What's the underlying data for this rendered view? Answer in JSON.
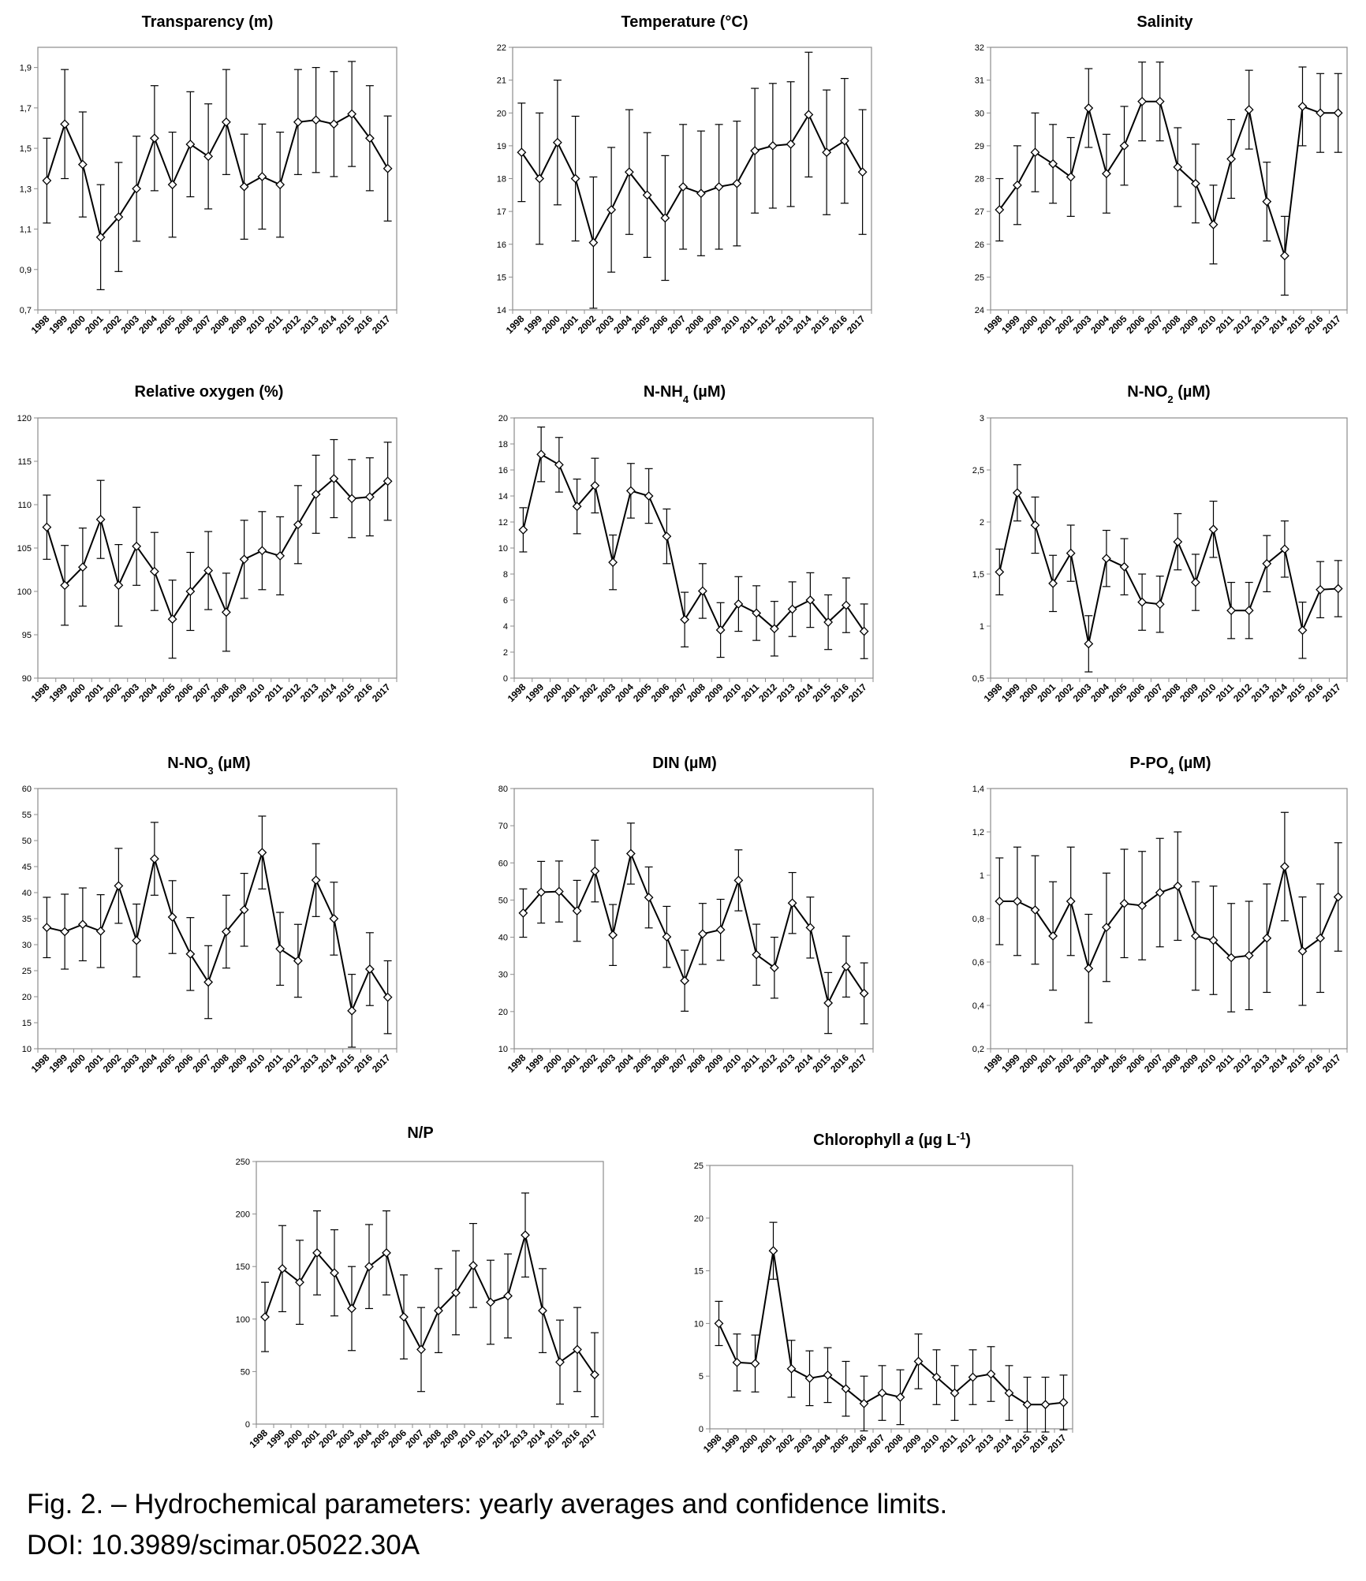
{
  "caption": {
    "line1": "Fig. 2. – Hydrochemical parameters: yearly averages and confidence limits.",
    "line2": "DOI: 10.3989/scimar.05022.30A"
  },
  "chart_data": [
    {
      "type": "line",
      "title": "Transparency (m)",
      "categories": [
        "1998",
        "1999",
        "2000",
        "2001",
        "2002",
        "2003",
        "2004",
        "2005",
        "2006",
        "2007",
        "2008",
        "2009",
        "2010",
        "2011",
        "2012",
        "2013",
        "2014",
        "2015",
        "2016",
        "2017"
      ],
      "values": [
        1.34,
        1.62,
        1.42,
        1.06,
        1.16,
        1.3,
        1.55,
        1.32,
        1.52,
        1.46,
        1.63,
        1.31,
        1.36,
        1.32,
        1.63,
        1.64,
        1.62,
        1.67,
        1.55,
        1.4
      ],
      "error": [
        0.21,
        0.27,
        0.26,
        0.26,
        0.27,
        0.26,
        0.26,
        0.26,
        0.26,
        0.26,
        0.26,
        0.26,
        0.26,
        0.26,
        0.26,
        0.26,
        0.26,
        0.26,
        0.26,
        0.26
      ],
      "ylim": [
        0.7,
        2.0
      ],
      "yticks": [
        0.7,
        0.9,
        1.1,
        1.3,
        1.5,
        1.7,
        1.9
      ],
      "ytick_labels": [
        "0,7",
        "0,9",
        "1,1",
        "1,3",
        "1,5",
        "1,7",
        "1,9"
      ]
    },
    {
      "type": "line",
      "title": "Temperature (°C)",
      "categories": [
        "1998",
        "1999",
        "2000",
        "2001",
        "2002",
        "2003",
        "2004",
        "2005",
        "2006",
        "2007",
        "2008",
        "2009",
        "2010",
        "2011",
        "2012",
        "2013",
        "2014",
        "2015",
        "2016",
        "2017"
      ],
      "values": [
        18.8,
        18.0,
        19.1,
        18.0,
        16.05,
        17.05,
        18.2,
        17.5,
        16.8,
        17.75,
        17.55,
        17.75,
        17.85,
        18.85,
        19.0,
        19.05,
        19.95,
        18.8,
        19.15,
        18.2
      ],
      "error": [
        1.5,
        2.0,
        1.9,
        1.9,
        2.0,
        1.9,
        1.9,
        1.9,
        1.9,
        1.9,
        1.9,
        1.9,
        1.9,
        1.9,
        1.9,
        1.9,
        1.9,
        1.9,
        1.9,
        1.9
      ],
      "ylim": [
        14,
        22
      ],
      "yticks": [
        14,
        15,
        16,
        17,
        18,
        19,
        20,
        21,
        22
      ],
      "ytick_labels": [
        "14",
        "15",
        "16",
        "17",
        "18",
        "19",
        "20",
        "21",
        "22"
      ]
    },
    {
      "type": "line",
      "title": "Salinity",
      "categories": [
        "1998",
        "1999",
        "2000",
        "2001",
        "2002",
        "2003",
        "2004",
        "2005",
        "2006",
        "2007",
        "2008",
        "2009",
        "2010",
        "2011",
        "2012",
        "2013",
        "2014",
        "2015",
        "2016",
        "2017"
      ],
      "values": [
        27.05,
        27.8,
        28.8,
        28.45,
        28.05,
        30.15,
        28.15,
        29.0,
        30.35,
        30.35,
        28.35,
        27.85,
        26.6,
        28.6,
        30.1,
        27.3,
        25.65,
        30.2,
        30.0,
        30.0
      ],
      "error": [
        0.95,
        1.2,
        1.2,
        1.2,
        1.2,
        1.2,
        1.2,
        1.2,
        1.2,
        1.2,
        1.2,
        1.2,
        1.2,
        1.2,
        1.2,
        1.2,
        1.2,
        1.2,
        1.2,
        1.2
      ],
      "ylim": [
        24,
        32
      ],
      "yticks": [
        24,
        25,
        26,
        27,
        28,
        29,
        30,
        31,
        32
      ],
      "ytick_labels": [
        "24",
        "25",
        "26",
        "27",
        "28",
        "29",
        "30",
        "31",
        "32"
      ]
    },
    {
      "type": "line",
      "title": "Relative oxygen (%)",
      "categories": [
        "1998",
        "1999",
        "2000",
        "2001",
        "2002",
        "2003",
        "2004",
        "2005",
        "2006",
        "2007",
        "2008",
        "2009",
        "2010",
        "2011",
        "2012",
        "2013",
        "2014",
        "2015",
        "2016",
        "2017"
      ],
      "values": [
        107.4,
        100.7,
        102.8,
        108.3,
        100.7,
        105.2,
        102.3,
        96.8,
        100.0,
        102.4,
        97.6,
        103.7,
        104.7,
        104.1,
        107.7,
        111.2,
        113.0,
        110.7,
        110.9,
        112.7
      ],
      "error": [
        3.7,
        4.6,
        4.5,
        4.5,
        4.7,
        4.5,
        4.5,
        4.5,
        4.5,
        4.5,
        4.5,
        4.5,
        4.5,
        4.5,
        4.5,
        4.5,
        4.5,
        4.5,
        4.5,
        4.5
      ],
      "ylim": [
        90,
        120
      ],
      "yticks": [
        90,
        95,
        100,
        105,
        110,
        115,
        120
      ],
      "ytick_labels": [
        "90",
        "95",
        "100",
        "105",
        "110",
        "115",
        "120"
      ]
    },
    {
      "type": "line",
      "title": "N-NH₄  (µM)",
      "categories": [
        "1998",
        "1999",
        "2000",
        "2001",
        "2002",
        "2003",
        "2004",
        "2005",
        "2006",
        "2007",
        "2008",
        "2009",
        "2010",
        "2011",
        "2012",
        "2013",
        "2014",
        "2015",
        "2016",
        "2017"
      ],
      "values": [
        11.4,
        17.2,
        16.4,
        13.2,
        14.8,
        8.9,
        14.4,
        14.0,
        10.9,
        4.5,
        6.7,
        3.7,
        5.7,
        5.0,
        3.8,
        5.3,
        6.0,
        4.3,
        5.6,
        3.6
      ],
      "error": [
        1.7,
        2.1,
        2.1,
        2.1,
        2.1,
        2.1,
        2.1,
        2.1,
        2.1,
        2.1,
        2.1,
        2.1,
        2.1,
        2.1,
        2.1,
        2.1,
        2.1,
        2.1,
        2.1,
        2.1
      ],
      "ylim": [
        0,
        20
      ],
      "yticks": [
        0,
        2,
        4,
        6,
        8,
        10,
        12,
        14,
        16,
        18,
        20
      ],
      "ytick_labels": [
        "0",
        "2",
        "4",
        "6",
        "8",
        "10",
        "12",
        "14",
        "16",
        "18",
        "20"
      ]
    },
    {
      "type": "line",
      "title": "N-NO₂ (µM)",
      "categories": [
        "1998",
        "1999",
        "2000",
        "2001",
        "2002",
        "2003",
        "2004",
        "2005",
        "2006",
        "2007",
        "2008",
        "2009",
        "2010",
        "2011",
        "2012",
        "2013",
        "2014",
        "2015",
        "2016",
        "2017"
      ],
      "values": [
        1.52,
        2.28,
        1.97,
        1.41,
        1.7,
        0.83,
        1.65,
        1.57,
        1.23,
        1.21,
        1.81,
        1.42,
        1.93,
        1.15,
        1.15,
        1.6,
        1.74,
        0.96,
        1.35,
        1.36
      ],
      "error": [
        0.22,
        0.27,
        0.27,
        0.27,
        0.27,
        0.27,
        0.27,
        0.27,
        0.27,
        0.27,
        0.27,
        0.27,
        0.27,
        0.27,
        0.27,
        0.27,
        0.27,
        0.27,
        0.27,
        0.27
      ],
      "ylim": [
        0.5,
        3
      ],
      "yticks": [
        0.5,
        1,
        1.5,
        2,
        2.5,
        3
      ],
      "ytick_labels": [
        "0,5",
        "1",
        "1,5",
        "2",
        "2,5",
        "3"
      ]
    },
    {
      "type": "line",
      "title": "N-NO₃ (µM)",
      "categories": [
        "1998",
        "1999",
        "2000",
        "2001",
        "2002",
        "2003",
        "2004",
        "2005",
        "2006",
        "2007",
        "2008",
        "2009",
        "2010",
        "2011",
        "2012",
        "2013",
        "2014",
        "2015",
        "2016",
        "2017"
      ],
      "values": [
        33.3,
        32.5,
        33.9,
        32.6,
        41.3,
        30.8,
        46.5,
        35.3,
        28.2,
        22.8,
        32.5,
        36.7,
        47.7,
        29.2,
        26.9,
        42.4,
        35.0,
        17.3,
        25.3,
        19.9
      ],
      "error": [
        5.8,
        7.2,
        7.0,
        7.0,
        7.2,
        7.0,
        7.0,
        7.0,
        7.0,
        7.0,
        7.0,
        7.0,
        7.0,
        7.0,
        7.0,
        7.0,
        7.0,
        7.0,
        7.0,
        7.0
      ],
      "ylim": [
        10,
        60
      ],
      "yticks": [
        10,
        15,
        20,
        25,
        30,
        35,
        40,
        45,
        50,
        55,
        60
      ],
      "ytick_labels": [
        "10",
        "15",
        "20",
        "25",
        "30",
        "35",
        "40",
        "45",
        "50",
        "55",
        "60"
      ]
    },
    {
      "type": "line",
      "title": "DIN (µM)",
      "categories": [
        "1998",
        "1999",
        "2000",
        "2001",
        "2002",
        "2003",
        "2004",
        "2005",
        "2006",
        "2007",
        "2008",
        "2009",
        "2010",
        "2011",
        "2012",
        "2013",
        "2014",
        "2015",
        "2016",
        "2017"
      ],
      "values": [
        46.5,
        52.1,
        52.3,
        47.1,
        57.8,
        40.6,
        62.5,
        50.7,
        40.1,
        28.3,
        40.9,
        42.0,
        55.3,
        35.3,
        31.8,
        49.2,
        42.6,
        22.3,
        32.1,
        24.9
      ],
      "error": [
        6.5,
        8.3,
        8.2,
        8.2,
        8.3,
        8.2,
        8.2,
        8.2,
        8.2,
        8.2,
        8.2,
        8.2,
        8.2,
        8.2,
        8.2,
        8.2,
        8.2,
        8.2,
        8.2,
        8.2
      ],
      "ylim": [
        10,
        80
      ],
      "yticks": [
        10,
        20,
        30,
        40,
        50,
        60,
        70,
        80
      ],
      "ytick_labels": [
        "10",
        "20",
        "30",
        "40",
        "50",
        "60",
        "70",
        "80"
      ]
    },
    {
      "type": "line",
      "title": "P-PO₄ (µM)",
      "categories": [
        "1998",
        "1999",
        "2000",
        "2001",
        "2002",
        "2003",
        "2004",
        "2005",
        "2006",
        "2007",
        "2008",
        "2009",
        "2010",
        "2011",
        "2012",
        "2013",
        "2014",
        "2015",
        "2016",
        "2017"
      ],
      "values": [
        0.88,
        0.88,
        0.84,
        0.72,
        0.88,
        0.57,
        0.76,
        0.87,
        0.86,
        0.92,
        0.95,
        0.72,
        0.7,
        0.62,
        0.63,
        0.71,
        1.04,
        0.65,
        0.71,
        0.9
      ],
      "error": [
        0.2,
        0.25,
        0.25,
        0.25,
        0.25,
        0.25,
        0.25,
        0.25,
        0.25,
        0.25,
        0.25,
        0.25,
        0.25,
        0.25,
        0.25,
        0.25,
        0.25,
        0.25,
        0.25,
        0.25
      ],
      "ylim": [
        0.2,
        1.4
      ],
      "yticks": [
        0.2,
        0.4,
        0.6,
        0.8,
        1,
        1.2,
        1.4
      ],
      "ytick_labels": [
        "0,2",
        "0,4",
        "0,6",
        "0,8",
        "1",
        "1,2",
        "1,4"
      ]
    },
    {
      "type": "line",
      "title": "N/P",
      "categories": [
        "1998",
        "1999",
        "2000",
        "2001",
        "2002",
        "2003",
        "2004",
        "2005",
        "2006",
        "2007",
        "2008",
        "2009",
        "2010",
        "2011",
        "2012",
        "2013",
        "2014",
        "2015",
        "2016",
        "2017"
      ],
      "values": [
        102,
        148,
        135,
        163,
        144,
        110,
        150,
        163,
        102,
        71,
        108,
        125,
        151,
        116,
        122,
        180,
        108,
        59,
        71,
        47
      ],
      "error": [
        33,
        41,
        40,
        40,
        41,
        40,
        40,
        40,
        40,
        40,
        40,
        40,
        40,
        40,
        40,
        40,
        40,
        40,
        40,
        40
      ],
      "ylim": [
        0,
        250
      ],
      "yticks": [
        0,
        50,
        100,
        150,
        200,
        250
      ],
      "ytick_labels": [
        "0",
        "50",
        "100",
        "150",
        "200",
        "250"
      ]
    },
    {
      "type": "line",
      "title": "Chlorophyll a (µg L⁻¹)",
      "categories": [
        "1998",
        "1999",
        "2000",
        "2001",
        "2002",
        "2003",
        "2004",
        "2005",
        "2006",
        "2007",
        "2008",
        "2009",
        "2010",
        "2011",
        "2012",
        "2013",
        "2014",
        "2015",
        "2016",
        "2017"
      ],
      "values": [
        10.0,
        6.3,
        6.2,
        16.9,
        5.7,
        4.8,
        5.1,
        3.8,
        2.4,
        3.4,
        3.0,
        6.4,
        4.9,
        3.4,
        4.9,
        5.2,
        3.4,
        2.3,
        2.3,
        2.5
      ],
      "error": [
        2.1,
        2.7,
        2.7,
        2.7,
        2.7,
        2.6,
        2.6,
        2.6,
        2.6,
        2.6,
        2.6,
        2.6,
        2.6,
        2.6,
        2.6,
        2.6,
        2.6,
        2.6,
        2.6,
        2.6
      ],
      "ylim": [
        0,
        25
      ],
      "yticks": [
        0,
        5,
        10,
        15,
        20,
        25
      ],
      "ytick_labels": [
        "0",
        "5",
        "10",
        "15",
        "20",
        "25"
      ]
    }
  ],
  "panels": [
    {
      "name": "transparency",
      "title_html": "Transparency (m)"
    },
    {
      "name": "temperature",
      "title_html": "Temperature (°C)"
    },
    {
      "name": "salinity",
      "title_html": "Salinity"
    },
    {
      "name": "relative-oxygen",
      "title_html": "Relative oxygen (%)"
    },
    {
      "name": "n-nh4",
      "title_html": "N-NH<tspan baseline-shift='sub' font-size='13'>4</tspan>  (µM)"
    },
    {
      "name": "n-no2",
      "title_html": "N-NO<tspan baseline-shift='sub' font-size='13'>2</tspan> (µM)"
    },
    {
      "name": "n-no3",
      "title_html": "N-NO<tspan baseline-shift='sub' font-size='13'>3</tspan> (µM)"
    },
    {
      "name": "din",
      "title_html": "DIN (µM)"
    },
    {
      "name": "p-po4",
      "title_html": "P-PO<tspan baseline-shift='sub' font-size='13'>4</tspan> (µM)"
    },
    {
      "name": "n-p-ratio",
      "title_html": "N/P"
    },
    {
      "name": "chlorophyll-a",
      "title_html": "Chlorophyll <tspan font-style='italic'>a</tspan> (µg L<tspan baseline-shift='super' font-size='13'>-1</tspan>)"
    }
  ]
}
